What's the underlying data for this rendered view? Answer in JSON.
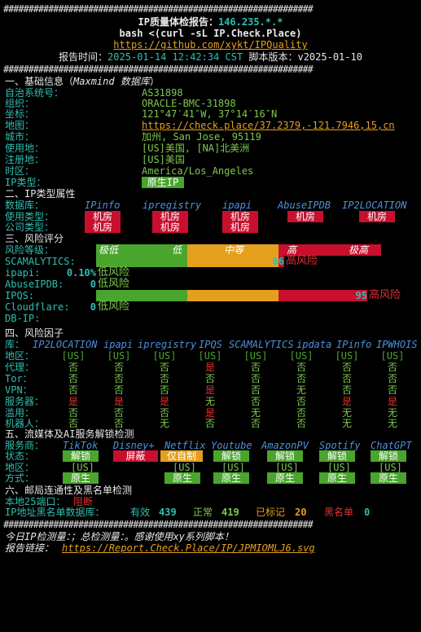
{
  "separator": "##############################################################",
  "header": {
    "title_prefix": "IP质量体检报告：",
    "ip": "146.235.*.*",
    "command": "bash <(curl -sL IP.Check.Place)",
    "repo_url": "https://github.com/xykt/IPQuality",
    "report_time_label": "报告时间：",
    "report_time": "2025-01-14 12:42:34 CST",
    "script_version_label": "脚本版本：",
    "script_version": "v2025-01-10"
  },
  "basic": {
    "heading": "一、基础信息（",
    "heading_source": "Maxmind 数据库",
    "heading_end": "）",
    "asn_label": "自治系统号：",
    "asn": "AS31898",
    "org_label": "组织：",
    "org": "ORACLE-BMC-31898",
    "coords_label": "坐标：",
    "coords": "121°47′41″W, 37°14′16″N",
    "map_label": "地图：",
    "map_url": "https://check.place/37.2379,-121.7946,15,cn",
    "city_label": "城市：",
    "city": "加州, San Jose, 95119",
    "usage_location_label": "使用地：",
    "usage_location": "[US]美国, [NA]北美洲",
    "registration_label": "注册地：",
    "registration": "[US]美国",
    "timezone_label": "时区：",
    "timezone": "America/Los_Angeles",
    "ip_type_label": "IP类型：",
    "ip_type": "原生IP"
  },
  "ip_type_section": {
    "heading": "二、IP类型属性",
    "db_label": "数据库：",
    "databases": [
      "IPinfo",
      "ipregistry",
      "ipapi",
      "AbuseIPDB",
      "IP2LOCATION"
    ],
    "usage_type_label": "使用类型：",
    "usage_types": [
      "机房",
      "机房",
      "机房",
      "机房",
      "机房"
    ],
    "company_type_label": "公司类型：",
    "company_types": [
      "机房",
      "机房",
      "机房"
    ]
  },
  "risk": {
    "heading": "三、风险评分",
    "level_label": "风险等级：",
    "levels": [
      "极低",
      "低",
      "中等",
      "高",
      "极高"
    ],
    "rows": [
      {
        "label": "SCAMALYTICS:",
        "score": "66",
        "verdict": "高风险",
        "value": 66
      },
      {
        "label": "ipapi:",
        "score": "0.10%",
        "verdict": "低风险",
        "value": 0.1
      },
      {
        "label": "AbuseIPDB:",
        "score": "0",
        "verdict": "低风险",
        "value": 0
      },
      {
        "label": "IPQS:",
        "score": "95",
        "verdict": "高风险",
        "value": 95
      },
      {
        "label": "Cloudflare:",
        "score": "0",
        "verdict": "低风险",
        "value": 0
      },
      {
        "label": "DB-IP:",
        "score": "",
        "verdict": "",
        "value": null
      }
    ]
  },
  "factors": {
    "heading": "四、风险因子",
    "db_label": "库：",
    "databases": [
      "IP2LOCATION",
      "ipapi",
      "ipregistry",
      "IPQS",
      "SCAMALYTICS",
      "ipdata",
      "IPinfo",
      "IPWHOIS"
    ],
    "rows": [
      {
        "label": "地区：",
        "values": [
          "[US]",
          "[US]",
          "[US]",
          "[US]",
          "[US]",
          "[US]",
          "[US]",
          "[US]"
        ]
      },
      {
        "label": "代理：",
        "values": [
          "否",
          "否",
          "否",
          "是",
          "否",
          "否",
          "否",
          "否"
        ]
      },
      {
        "label": "Tor：",
        "values": [
          "否",
          "否",
          "否",
          "否",
          "否",
          "否",
          "否",
          "否"
        ]
      },
      {
        "label": "VPN：",
        "values": [
          "否",
          "否",
          "否",
          "是",
          "否",
          "无",
          "否",
          "否"
        ]
      },
      {
        "label": "服务器：",
        "values": [
          "是",
          "是",
          "是",
          "无",
          "否",
          "否",
          "是",
          "是"
        ]
      },
      {
        "label": "滥用：",
        "values": [
          "否",
          "否",
          "否",
          "是",
          "无",
          "否",
          "无",
          "无"
        ]
      },
      {
        "label": "机器人：",
        "values": [
          "否",
          "否",
          "无",
          "否",
          "否",
          "否",
          "无",
          "无"
        ]
      }
    ]
  },
  "streaming": {
    "heading": "五、流媒体及AI服务解锁检测",
    "service_label": "服务商：",
    "services": [
      "TikTok",
      "Disney+",
      "Netflix",
      "Youtube",
      "AmazonPV",
      "Spotify",
      "ChatGPT"
    ],
    "status_label": "状态：",
    "statuses": [
      "解锁",
      "屏蔽",
      "仅自制",
      "解锁",
      "解锁",
      "解锁",
      "解锁"
    ],
    "region_label": "地区：",
    "regions": [
      "[US]",
      "",
      "[US]",
      "[US]",
      "[US]",
      "[US]",
      "[US]"
    ],
    "method_label": "方式：",
    "methods": [
      "原生",
      "",
      "原生",
      "原生",
      "原生",
      "原生",
      "原生"
    ]
  },
  "mail": {
    "heading": "六、邮局连通性及黑名单检测",
    "port25_label": "本地25端口：",
    "port25": "阻断",
    "blacklist_label": "IP地址黑名单数据库：",
    "valid_label": "有效",
    "valid": "439",
    "normal_label": "正常",
    "normal": "419",
    "marked_label": "已标记",
    "marked": "20",
    "blacklisted_label": "黑名单",
    "blacklisted": "0"
  },
  "footer": {
    "line1": "今日IP检测量：；总检测量：。感谢使用xy系列脚本！",
    "report_link_label": "报告链接：",
    "report_link": "https://Report.Check.Place/IP/JPMIOMLJ6.svg"
  },
  "colors": {
    "teal": "#2fbfb0",
    "green": "#7ec850",
    "yellow": "#e4a01d",
    "red": "#e23030",
    "blue": "#4e8fdc",
    "badge_red": "#c8102e",
    "badge_green": "#4aa52e",
    "badge_purple": "#7b3fb0"
  }
}
